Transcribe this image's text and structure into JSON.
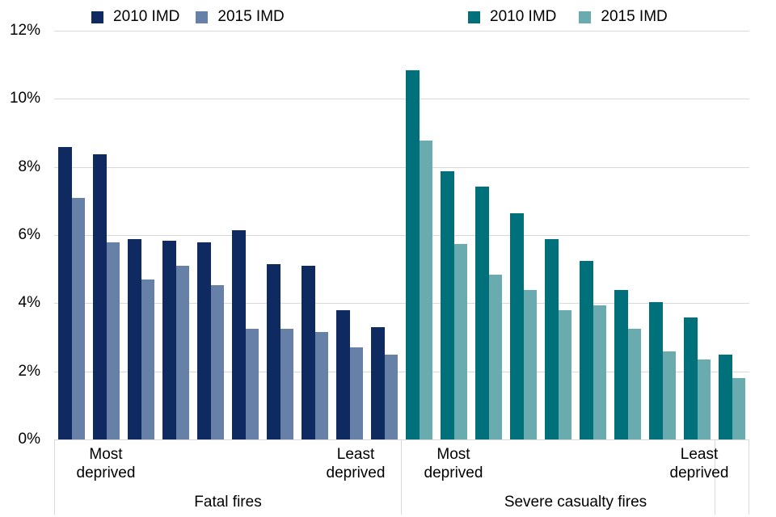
{
  "chart_data": {
    "type": "bar",
    "title": "",
    "unit": "%",
    "ylim": [
      0,
      12
    ],
    "yticks": [
      "12%",
      "10%",
      "8%",
      "6%",
      "4%",
      "2%",
      "0%"
    ],
    "grid": true,
    "legend_position": "top",
    "gridline_color": "#d9d9d9",
    "groups": [
      {
        "label": "Fatal fires",
        "sub_labels": {
          "left": "Most deprived",
          "right": "Least deprived"
        },
        "series": [
          {
            "name": "2010 IMD",
            "color": "#0f2a60",
            "values": [
              8.6,
              8.4,
              5.9,
              5.85,
              5.8,
              6.15,
              5.15,
              5.1,
              3.8,
              3.3
            ]
          },
          {
            "name": "2015 IMD",
            "color": "#6780a8",
            "values": [
              7.1,
              5.8,
              4.7,
              5.1,
              4.55,
              3.25,
              3.25,
              3.15,
              2.7,
              2.5
            ]
          }
        ]
      },
      {
        "label": "Severe casualty fires",
        "sub_labels": {
          "left": "Most deprived",
          "right": "Least deprived"
        },
        "series": [
          {
            "name": "2010 IMD",
            "color": "#00717b",
            "values": [
              10.85,
              7.9,
              7.45,
              6.65,
              5.9,
              5.25,
              4.4,
              4.05,
              3.6,
              2.5
            ]
          },
          {
            "name": "2015 IMD",
            "color": "#69abae",
            "values": [
              8.8,
              5.75,
              4.85,
              4.4,
              3.8,
              3.95,
              3.25,
              2.6,
              2.35,
              1.8
            ]
          }
        ]
      }
    ]
  }
}
